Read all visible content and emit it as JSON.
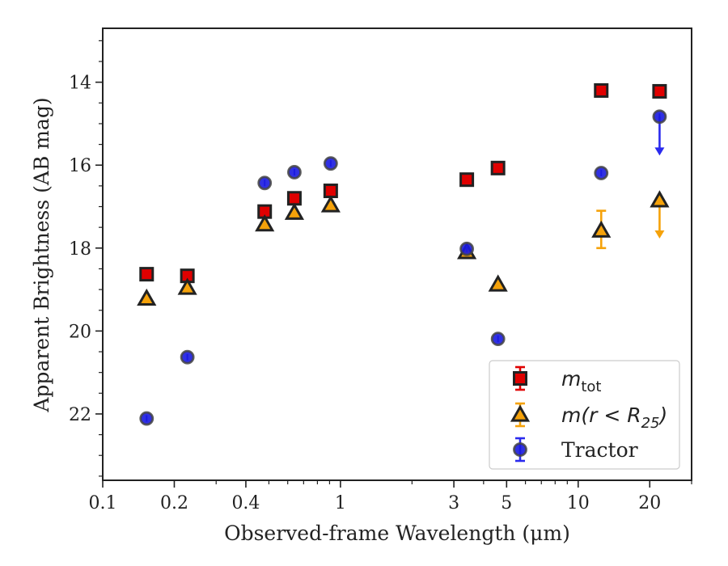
{
  "chart_data": {
    "type": "scatter",
    "xlabel": "Observed-frame Wavelength (μm)",
    "ylabel": "Apparent Brightness (AB mag)",
    "xscale": "log",
    "xlim": [
      0.1,
      30
    ],
    "ylim": [
      23.6,
      12.7
    ],
    "y_inverted": true,
    "x_tick_labels": [
      "0.1",
      "0.2",
      "0.4",
      "1",
      "3",
      "5",
      "10",
      "20"
    ],
    "y_tick_labels": [
      "14",
      "16",
      "18",
      "20",
      "22"
    ],
    "legend_position": "lower-right",
    "series": [
      {
        "key": "mtot",
        "legend_label": "m_tot",
        "legend_main": "m",
        "legend_sub": "tot",
        "marker": "square",
        "fill": "#e00000",
        "edge": "#222222",
        "errcolor": "#e00000",
        "points": [
          {
            "x": 0.153,
            "y": 18.63
          },
          {
            "x": 0.227,
            "y": 18.67
          },
          {
            "x": 0.48,
            "y": 17.12
          },
          {
            "x": 0.64,
            "y": 16.8
          },
          {
            "x": 0.91,
            "y": 16.62
          },
          {
            "x": 3.4,
            "y": 16.35
          },
          {
            "x": 4.6,
            "y": 16.07
          },
          {
            "x": 12.5,
            "y": 14.2
          },
          {
            "x": 22.0,
            "y": 14.22
          }
        ]
      },
      {
        "key": "mr25",
        "legend_label": "m(r < R_25)",
        "legend_main": "m(r < R",
        "legend_sub": "25",
        "legend_close": ")",
        "marker": "triangle",
        "fill": "#f5a20a",
        "edge": "#222222",
        "errcolor": "#f5a20a",
        "points": [
          {
            "x": 0.153,
            "y": 19.22
          },
          {
            "x": 0.227,
            "y": 18.96
          },
          {
            "x": 0.48,
            "y": 17.43
          },
          {
            "x": 0.64,
            "y": 17.15
          },
          {
            "x": 0.91,
            "y": 16.97
          },
          {
            "x": 3.4,
            "y": 18.1
          },
          {
            "x": 4.6,
            "y": 18.88
          },
          {
            "x": 12.5,
            "y": 17.58,
            "yerr": [
              17.1,
              18.0
            ]
          },
          {
            "x": 22.0,
            "y": 16.85,
            "upper_limit_to": 17.75
          }
        ]
      },
      {
        "key": "tractor",
        "legend_label": "Tractor",
        "legend_main": "Tractor",
        "marker": "circle",
        "fill": "#1a1ae0",
        "edge": "#444444",
        "errcolor": "#2a2aee",
        "points": [
          {
            "x": 0.153,
            "y": 22.11
          },
          {
            "x": 0.227,
            "y": 20.63
          },
          {
            "x": 0.48,
            "y": 16.43
          },
          {
            "x": 0.64,
            "y": 16.17
          },
          {
            "x": 0.91,
            "y": 15.96
          },
          {
            "x": 3.4,
            "y": 18.02
          },
          {
            "x": 4.6,
            "y": 20.19
          },
          {
            "x": 12.5,
            "y": 16.19
          },
          {
            "x": 22.0,
            "y": 14.83,
            "upper_limit_to": 15.75
          }
        ]
      }
    ]
  }
}
